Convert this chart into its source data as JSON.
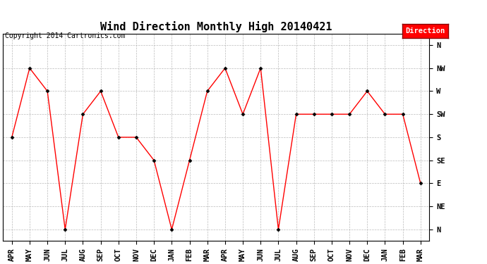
{
  "title": "Wind Direction Monthly High 20140421",
  "copyright": "Copyright 2014 Cartronics.com",
  "legend_label": "Direction",
  "legend_color": "#ff0000",
  "legend_text_color": "#ffffff",
  "x_labels": [
    "APR",
    "MAY",
    "JUN",
    "JUL",
    "AUG",
    "SEP",
    "OCT",
    "NOV",
    "DEC",
    "JAN",
    "FEB",
    "MAR",
    "APR",
    "MAY",
    "JUN",
    "JUL",
    "AUG",
    "SEP",
    "OCT",
    "NOV",
    "DEC",
    "JAN",
    "FEB",
    "MAR"
  ],
  "y_labels": [
    "N",
    "NE",
    "E",
    "SE",
    "S",
    "SW",
    "W",
    "NW",
    "N"
  ],
  "y_vals": [
    4,
    7,
    6,
    0,
    5,
    6,
    4,
    4,
    3,
    0,
    3,
    6,
    7,
    5,
    7,
    0,
    5,
    5,
    5,
    5,
    6,
    5,
    5,
    2
  ],
  "line_color": "#ff0000",
  "marker_color": "#000000",
  "bg_color": "#ffffff",
  "grid_color": "#aaaaaa",
  "title_fontsize": 11,
  "copyright_fontsize": 7,
  "label_fontsize": 7.5
}
